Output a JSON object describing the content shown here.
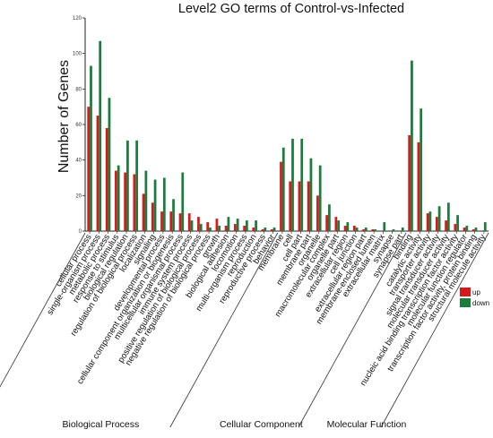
{
  "chart_data": {
    "type": "bar",
    "title": "Level2 GO terms of Control-vs-Infected",
    "ylabel": "Number of Genes",
    "xlabel": "",
    "ylim": [
      0,
      120
    ],
    "yticks": [
      0,
      20,
      40,
      60,
      80,
      100,
      120
    ],
    "grid": false,
    "legend": "right",
    "colors": {
      "up": "#d7191c",
      "down": "#1a7d3c"
    },
    "categories": [
      "cellular process",
      "single-organism process",
      "metabolic process",
      "response to stimulus",
      "biological regulation",
      "regulation of biological process",
      "localization",
      "signaling",
      "developmental process",
      "cellular component organization or biogenesis",
      "multicellular organismal process",
      "immune system process",
      "positive regulation of biological process",
      "negative regulation of biological process",
      "growth",
      "biological adhesion",
      "locomotion",
      "multi-organism process",
      "reproduction",
      "reproductive process",
      "behavior",
      "membrane",
      "cell",
      "cell part",
      "membrane part",
      "organelle",
      "macromolecular complex",
      "organelle part",
      "extracellular region",
      "cell junction",
      "extracellular region part",
      "membrane-enclosed lumen",
      "extracellular matrix",
      "synapse",
      "synapse part",
      "binding",
      "catalytic activity",
      "transporter activity",
      "signal transducer activity",
      "molecular transducer activity",
      "nucleic acid binding transcription factor activity",
      "molecular function regulator",
      "transcription factor activity, protein binding",
      "structural molecule activity"
    ],
    "series": [
      {
        "name": "up",
        "values": [
          70,
          65,
          58,
          34,
          33,
          32,
          21,
          16,
          11,
          11,
          10,
          10,
          8,
          5,
          7,
          3,
          4,
          3,
          2,
          1,
          1,
          39,
          28,
          28,
          28,
          20,
          9,
          8,
          3,
          3,
          1,
          1,
          0,
          0,
          0,
          54,
          50,
          10,
          8,
          6,
          4,
          2,
          1,
          0
        ]
      },
      {
        "name": "down",
        "values": [
          93,
          107,
          75,
          37,
          51,
          51,
          34,
          29,
          30,
          18,
          33,
          6,
          4,
          2,
          3,
          8,
          7,
          6,
          6,
          2,
          2,
          47,
          52,
          52,
          41,
          37,
          15,
          6,
          5,
          2,
          2,
          1,
          5,
          1,
          2,
          96,
          69,
          11,
          14,
          16,
          9,
          3,
          2,
          5
        ]
      }
    ],
    "groups": [
      {
        "label": "Biological Process",
        "start": 0,
        "end": 20
      },
      {
        "label": "Cellular Component",
        "start": 21,
        "end": 34
      },
      {
        "label": "Molecular Function",
        "start": 35,
        "end": 43
      }
    ]
  }
}
